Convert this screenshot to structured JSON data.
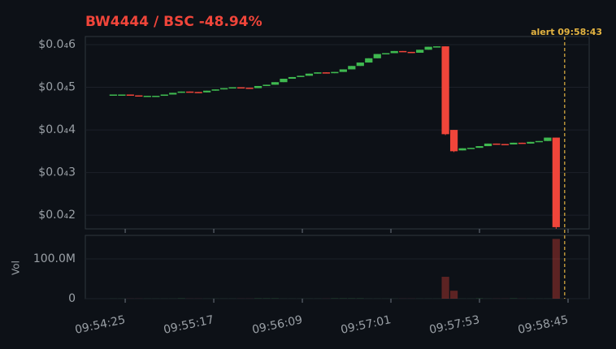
{
  "chart_data": {
    "type": "candlestick",
    "title": "BW4444 / BSC  -48.94%",
    "up_color": "#3fb950",
    "down_color": "#f0453a",
    "grid": true,
    "x": [
      35658,
      35663,
      35668,
      35673,
      35678,
      35683,
      35688,
      35693,
      35698,
      35703,
      35708,
      35713,
      35718,
      35723,
      35728,
      35733,
      35738,
      35743,
      35748,
      35753,
      35758,
      35763,
      35768,
      35773,
      35778,
      35783,
      35788,
      35793,
      35798,
      35803,
      35808,
      35813,
      35818,
      35823,
      35828,
      35833,
      35838,
      35843,
      35848,
      35853,
      35858,
      35863,
      35868,
      35873,
      35878,
      35883,
      35888,
      35893,
      35898,
      35903,
      35908,
      35913,
      35918
    ],
    "open": [
      4.83e-05,
      4.83e-05,
      4.83e-05,
      4.81e-05,
      4.79e-05,
      4.8e-05,
      4.8e-05,
      4.83e-05,
      4.87e-05,
      4.9e-05,
      4.89e-05,
      4.88e-05,
      4.92e-05,
      4.95e-05,
      4.98e-05,
      5e-05,
      4.99e-05,
      4.98e-05,
      5.03e-05,
      5.06e-05,
      5.12e-05,
      5.2e-05,
      5.24e-05,
      5.27e-05,
      5.32e-05,
      5.35e-05,
      5.33e-05,
      5.36e-05,
      5.42e-05,
      5.5e-05,
      5.58e-05,
      5.68e-05,
      5.78e-05,
      5.8e-05,
      5.85e-05,
      5.83e-05,
      5.81e-05,
      5.88e-05,
      5.95e-05,
      5.96e-05,
      4e-05,
      3.52e-05,
      3.57e-05,
      3.58e-05,
      3.62e-05,
      3.68e-05,
      3.67e-05,
      3.66e-05,
      3.7e-05,
      3.68e-05,
      3.72e-05,
      3.74e-05,
      3.82e-05
    ],
    "high": [
      4.83e-05,
      4.83e-05,
      4.83e-05,
      4.81e-05,
      4.8e-05,
      4.8e-05,
      4.83e-05,
      4.87e-05,
      4.9e-05,
      4.9e-05,
      4.89e-05,
      4.92e-05,
      4.95e-05,
      4.98e-05,
      5e-05,
      5e-05,
      4.99e-05,
      5.03e-05,
      5.06e-05,
      5.12e-05,
      5.2e-05,
      5.24e-05,
      5.27e-05,
      5.32e-05,
      5.35e-05,
      5.35e-05,
      5.36e-05,
      5.42e-05,
      5.5e-05,
      5.58e-05,
      5.68e-05,
      5.78e-05,
      5.8e-05,
      5.85e-05,
      5.85e-05,
      5.83e-05,
      5.88e-05,
      5.95e-05,
      5.96e-05,
      5.96e-05,
      4e-05,
      3.57e-05,
      3.58e-05,
      3.62e-05,
      3.68e-05,
      3.68e-05,
      3.67e-05,
      3.7e-05,
      3.7e-05,
      3.72e-05,
      3.74e-05,
      3.82e-05,
      3.82e-05
    ],
    "low": [
      4.83e-05,
      4.83e-05,
      4.81e-05,
      4.79e-05,
      4.79e-05,
      4.8e-05,
      4.8e-05,
      4.83e-05,
      4.87e-05,
      4.89e-05,
      4.88e-05,
      4.88e-05,
      4.92e-05,
      4.95e-05,
      4.98e-05,
      4.99e-05,
      4.98e-05,
      4.98e-05,
      5.03e-05,
      5.06e-05,
      5.12e-05,
      5.2e-05,
      5.24e-05,
      5.27e-05,
      5.32e-05,
      5.33e-05,
      5.33e-05,
      5.36e-05,
      5.42e-05,
      5.5e-05,
      5.58e-05,
      5.68e-05,
      5.78e-05,
      5.8e-05,
      5.83e-05,
      5.81e-05,
      5.81e-05,
      5.88e-05,
      5.95e-05,
      3.88e-05,
      3.48e-05,
      3.52e-05,
      3.57e-05,
      3.58e-05,
      3.62e-05,
      3.67e-05,
      3.66e-05,
      3.66e-05,
      3.68e-05,
      3.68e-05,
      3.72e-05,
      3.74e-05,
      1.68e-05
    ],
    "close": [
      4.83e-05,
      4.83e-05,
      4.81e-05,
      4.79e-05,
      4.8e-05,
      4.8e-05,
      4.83e-05,
      4.87e-05,
      4.9e-05,
      4.89e-05,
      4.88e-05,
      4.92e-05,
      4.95e-05,
      4.98e-05,
      5e-05,
      4.99e-05,
      4.98e-05,
      5.03e-05,
      5.06e-05,
      5.12e-05,
      5.2e-05,
      5.24e-05,
      5.27e-05,
      5.32e-05,
      5.35e-05,
      5.33e-05,
      5.36e-05,
      5.42e-05,
      5.5e-05,
      5.58e-05,
      5.68e-05,
      5.78e-05,
      5.8e-05,
      5.85e-05,
      5.83e-05,
      5.81e-05,
      5.88e-05,
      5.95e-05,
      5.96e-05,
      3.9e-05,
      3.5e-05,
      3.57e-05,
      3.58e-05,
      3.62e-05,
      3.68e-05,
      3.67e-05,
      3.66e-05,
      3.7e-05,
      3.68e-05,
      3.72e-05,
      3.74e-05,
      3.82e-05,
      1.72e-05
    ],
    "volume": [
      300000,
      300000,
      300000,
      300000,
      300000,
      300000,
      300000,
      300000,
      800000,
      300000,
      300000,
      300000,
      300000,
      300000,
      300000,
      300000,
      300000,
      800000,
      800000,
      800000,
      300000,
      300000,
      300000,
      300000,
      300000,
      300000,
      800000,
      800000,
      800000,
      800000,
      300000,
      300000,
      300000,
      300000,
      300000,
      300000,
      300000,
      300000,
      300000,
      55000000,
      20000000,
      300000,
      300000,
      800000,
      300000,
      300000,
      300000,
      800000,
      300000,
      300000,
      300000,
      300000,
      150000000
    ],
    "xlim": [
      35641.6,
      35937.4
    ],
    "xticks": [
      {
        "value": 35665,
        "label": "09:54:25"
      },
      {
        "value": 35717,
        "label": "09:55:17"
      },
      {
        "value": 35769,
        "label": "09:56:09"
      },
      {
        "value": 35821,
        "label": "09:57:01"
      },
      {
        "value": 35873,
        "label": "09:57:53"
      },
      {
        "value": 35925,
        "label": "09:58:45"
      }
    ],
    "ylim": [
      1.68e-05,
      6.19e-05
    ],
    "yticks": [
      {
        "value": 2e-05,
        "label": "$0.0₄2"
      },
      {
        "value": 3e-05,
        "label": "$0.0₄3"
      },
      {
        "value": 4e-05,
        "label": "$0.0₄4"
      },
      {
        "value": 5e-05,
        "label": "$0.0₄5"
      },
      {
        "value": 6e-05,
        "label": "$0.0₄6"
      }
    ],
    "volume_label": "Vol",
    "volume_lim": [
      0,
      159000000
    ],
    "volume_ticks": [
      0,
      {
        "value": 100000000,
        "label": "100.0M"
      }
    ],
    "annotation": {
      "label": "alert 09:58:43",
      "x": 35923,
      "color": "#e3b341"
    }
  }
}
